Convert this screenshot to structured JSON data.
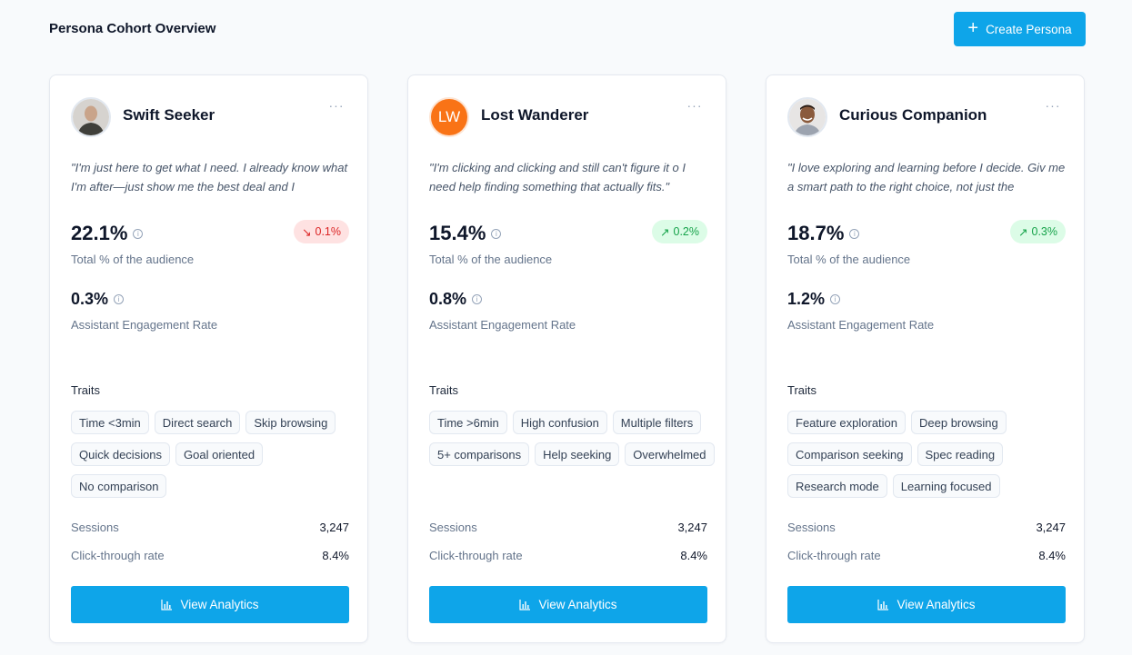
{
  "page": {
    "title": "Persona Cohort Overview",
    "create_button": "Create Persona"
  },
  "colors": {
    "accent": "#0ea5e9",
    "negative": "#dc2626",
    "positive": "#16a34a"
  },
  "personas": [
    {
      "name": "Swift Seeker",
      "avatar": "photo",
      "quote": "\"I'm just here to get what I need. I already know what I'm after—just show me the best deal and I",
      "audience_pct": "22.1%",
      "audience_label": "Total % of the audience",
      "change": "0.1%",
      "change_dir": "down",
      "engagement": "0.3%",
      "engagement_label": "Assistant Engagement Rate",
      "traits_label": "Traits",
      "traits": [
        "Time <3min",
        "Direct search",
        "Skip browsing",
        "Quick decisions",
        "Goal oriented",
        "No comparison"
      ],
      "sessions_label": "Sessions",
      "sessions": "3,247",
      "ctr_label": "Click-through rate",
      "ctr": "8.4%",
      "button": "View Analytics"
    },
    {
      "name": "Lost Wanderer",
      "avatar": "initials",
      "initials": "LW",
      "quote": "\"I'm clicking and clicking and still can't figure it o I need help finding something that actually fits.\"",
      "audience_pct": "15.4%",
      "audience_label": "Total % of the audience",
      "change": "0.2%",
      "change_dir": "up",
      "engagement": "0.8%",
      "engagement_label": "Assistant Engagement Rate",
      "traits_label": "Traits",
      "traits": [
        "Time >6min",
        "High confusion",
        "Multiple filters",
        "5+ comparisons",
        "Help seeking",
        "Overwhelmed"
      ],
      "sessions_label": "Sessions",
      "sessions": "3,247",
      "ctr_label": "Click-through rate",
      "ctr": "8.4%",
      "button": "View Analytics"
    },
    {
      "name": "Curious Companion",
      "avatar": "photo",
      "quote": "\"I love exploring and learning before I decide. Giv me a smart path to the right choice, not just the",
      "audience_pct": "18.7%",
      "audience_label": "Total % of the audience",
      "change": "0.3%",
      "change_dir": "up",
      "engagement": "1.2%",
      "engagement_label": "Assistant Engagement Rate",
      "traits_label": "Traits",
      "traits": [
        "Feature exploration",
        "Deep browsing",
        "Comparison seeking",
        "Spec reading",
        "Research mode",
        "Learning focused"
      ],
      "sessions_label": "Sessions",
      "sessions": "3,247",
      "ctr_label": "Click-through rate",
      "ctr": "8.4%",
      "button": "View Analytics"
    }
  ]
}
